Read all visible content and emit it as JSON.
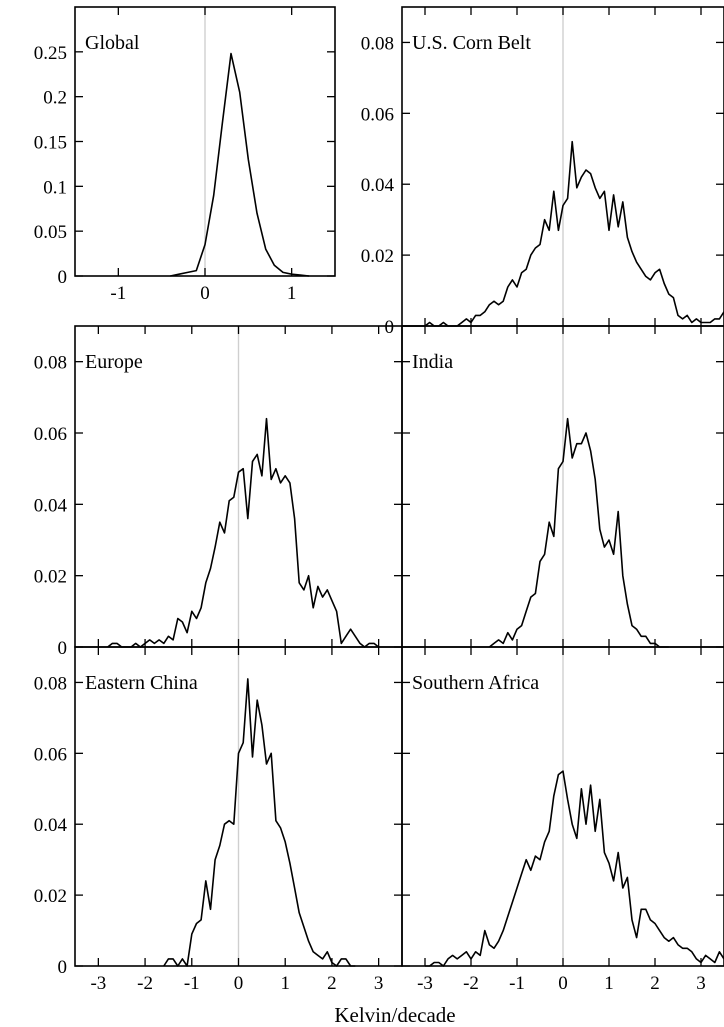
{
  "figure": {
    "xlabel": "Kelvin/decade"
  },
  "chart_data": [
    {
      "type": "line",
      "title": "Global",
      "xlim": [
        -1.5,
        1.5
      ],
      "ylim": [
        0,
        0.3
      ],
      "xticks": [
        -1,
        0,
        1
      ],
      "yticks": [
        0,
        0.05,
        0.1,
        0.15,
        0.2,
        0.25
      ],
      "ytick_labels": [
        "0",
        "0.05",
        "0.1",
        "0.15",
        "0.2",
        "0.25"
      ],
      "zero_line": true,
      "series": [
        {
          "x": [
            -0.4,
            -0.3,
            -0.2,
            -0.1,
            0.0,
            0.1,
            0.2,
            0.3,
            0.4,
            0.5,
            0.6,
            0.7,
            0.8,
            0.9,
            1.0,
            1.1,
            1.2
          ],
          "y": [
            0.0,
            0.002,
            0.004,
            0.006,
            0.035,
            0.09,
            0.17,
            0.248,
            0.205,
            0.13,
            0.07,
            0.03,
            0.012,
            0.004,
            0.002,
            0.001,
            0.0
          ]
        }
      ]
    },
    {
      "type": "line",
      "title": "U.S. Corn Belt",
      "xlim": [
        -3.5,
        3.5
      ],
      "ylim": [
        0,
        0.09
      ],
      "xticks": [
        -3,
        -2,
        -1,
        0,
        1,
        2,
        3
      ],
      "yticks": [
        0,
        0.02,
        0.04,
        0.06,
        0.08
      ],
      "ytick_labels": [
        "0",
        "0.02",
        "0.04",
        "0.06",
        "0.08"
      ],
      "zero_line": true,
      "series": [
        {
          "x": [
            -3.5,
            -3.4,
            -3.3,
            -3.2,
            -3.1,
            -3.0,
            -2.9,
            -2.8,
            -2.7,
            -2.6,
            -2.5,
            -2.4,
            -2.3,
            -2.2,
            -2.1,
            -2.0,
            -1.9,
            -1.8,
            -1.7,
            -1.6,
            -1.5,
            -1.4,
            -1.3,
            -1.2,
            -1.1,
            -1.0,
            -0.9,
            -0.8,
            -0.7,
            -0.6,
            -0.5,
            -0.4,
            -0.3,
            -0.2,
            -0.1,
            0.0,
            0.1,
            0.2,
            0.3,
            0.4,
            0.5,
            0.6,
            0.7,
            0.8,
            0.9,
            1.0,
            1.1,
            1.2,
            1.3,
            1.4,
            1.5,
            1.6,
            1.7,
            1.8,
            1.9,
            2.0,
            2.1,
            2.2,
            2.3,
            2.4,
            2.5,
            2.6,
            2.7,
            2.8,
            2.9,
            3.0,
            3.1,
            3.2,
            3.3,
            3.4,
            3.5
          ],
          "y": [
            0.0,
            0.0,
            0.0,
            0.0,
            0.0,
            0.0,
            0.001,
            0.0,
            0.0,
            0.001,
            0.0,
            0.0,
            0.0,
            0.001,
            0.002,
            0.001,
            0.003,
            0.003,
            0.004,
            0.006,
            0.007,
            0.006,
            0.007,
            0.011,
            0.013,
            0.011,
            0.015,
            0.016,
            0.02,
            0.022,
            0.023,
            0.03,
            0.027,
            0.038,
            0.027,
            0.034,
            0.036,
            0.052,
            0.039,
            0.042,
            0.044,
            0.043,
            0.039,
            0.036,
            0.038,
            0.027,
            0.037,
            0.028,
            0.035,
            0.025,
            0.021,
            0.018,
            0.016,
            0.014,
            0.013,
            0.015,
            0.016,
            0.012,
            0.009,
            0.008,
            0.003,
            0.002,
            0.003,
            0.001,
            0.002,
            0.001,
            0.001,
            0.001,
            0.002,
            0.002,
            0.004
          ]
        }
      ]
    },
    {
      "type": "line",
      "title": "Europe",
      "xlim": [
        -3.5,
        3.5
      ],
      "ylim": [
        0,
        0.09
      ],
      "xticks": [
        -3,
        -2,
        -1,
        0,
        1,
        2,
        3
      ],
      "yticks": [
        0,
        0.02,
        0.04,
        0.06,
        0.08
      ],
      "ytick_labels": [
        "0",
        "0.02",
        "0.04",
        "0.06",
        "0.08"
      ],
      "zero_line": true,
      "series": [
        {
          "x": [
            -2.8,
            -2.7,
            -2.6,
            -2.5,
            -2.4,
            -2.3,
            -2.2,
            -2.1,
            -2.0,
            -1.9,
            -1.8,
            -1.7,
            -1.6,
            -1.5,
            -1.4,
            -1.3,
            -1.2,
            -1.1,
            -1.0,
            -0.9,
            -0.8,
            -0.7,
            -0.6,
            -0.5,
            -0.4,
            -0.3,
            -0.2,
            -0.1,
            0.0,
            0.1,
            0.2,
            0.3,
            0.4,
            0.5,
            0.6,
            0.7,
            0.8,
            0.9,
            1.0,
            1.1,
            1.2,
            1.3,
            1.4,
            1.5,
            1.6,
            1.7,
            1.8,
            1.9,
            2.0,
            2.1,
            2.2,
            2.3,
            2.4,
            2.5,
            2.6,
            2.7,
            2.8,
            2.9,
            3.0
          ],
          "y": [
            0.0,
            0.001,
            0.001,
            0.0,
            0.0,
            0.0,
            0.001,
            0.0,
            0.001,
            0.002,
            0.001,
            0.002,
            0.001,
            0.003,
            0.002,
            0.008,
            0.007,
            0.004,
            0.01,
            0.008,
            0.011,
            0.018,
            0.022,
            0.028,
            0.035,
            0.032,
            0.041,
            0.042,
            0.049,
            0.05,
            0.036,
            0.052,
            0.054,
            0.048,
            0.064,
            0.047,
            0.05,
            0.046,
            0.048,
            0.046,
            0.036,
            0.018,
            0.016,
            0.02,
            0.011,
            0.017,
            0.014,
            0.016,
            0.013,
            0.01,
            0.001,
            0.003,
            0.005,
            0.003,
            0.001,
            0.0,
            0.001,
            0.001,
            0.0
          ]
        }
      ]
    },
    {
      "type": "line",
      "title": "India",
      "xlim": [
        -3.5,
        3.5
      ],
      "ylim": [
        0,
        0.09
      ],
      "xticks": [
        -3,
        -2,
        -1,
        0,
        1,
        2,
        3
      ],
      "yticks": [
        0,
        0.02,
        0.04,
        0.06,
        0.08
      ],
      "ytick_labels": [
        "0",
        "0.02",
        "0.04",
        "0.06",
        "0.08"
      ],
      "zero_line": true,
      "series": [
        {
          "x": [
            -1.6,
            -1.5,
            -1.4,
            -1.3,
            -1.2,
            -1.1,
            -1.0,
            -0.9,
            -0.8,
            -0.7,
            -0.6,
            -0.5,
            -0.4,
            -0.3,
            -0.2,
            -0.1,
            0.0,
            0.1,
            0.2,
            0.3,
            0.4,
            0.5,
            0.6,
            0.7,
            0.8,
            0.9,
            1.0,
            1.1,
            1.2,
            1.3,
            1.4,
            1.5,
            1.6,
            1.7,
            1.8,
            1.9,
            2.0,
            2.1,
            2.2,
            2.3
          ],
          "y": [
            0.0,
            0.001,
            0.002,
            0.001,
            0.004,
            0.002,
            0.005,
            0.006,
            0.01,
            0.014,
            0.015,
            0.024,
            0.026,
            0.035,
            0.031,
            0.05,
            0.052,
            0.064,
            0.053,
            0.057,
            0.057,
            0.06,
            0.055,
            0.047,
            0.033,
            0.028,
            0.03,
            0.026,
            0.038,
            0.02,
            0.012,
            0.006,
            0.005,
            0.003,
            0.003,
            0.001,
            0.001,
            0.0,
            0.0,
            0.0
          ]
        }
      ]
    },
    {
      "type": "line",
      "title": "Eastern China",
      "xlim": [
        -3.5,
        3.5
      ],
      "ylim": [
        0,
        0.09
      ],
      "xticks": [
        -3,
        -2,
        -1,
        0,
        1,
        2,
        3
      ],
      "yticks": [
        0,
        0.02,
        0.04,
        0.06,
        0.08
      ],
      "ytick_labels": [
        "0",
        "0.02",
        "0.04",
        "0.06",
        "0.08"
      ],
      "zero_line": true,
      "series": [
        {
          "x": [
            -1.6,
            -1.5,
            -1.4,
            -1.3,
            -1.2,
            -1.1,
            -1.0,
            -0.9,
            -0.8,
            -0.7,
            -0.6,
            -0.5,
            -0.4,
            -0.3,
            -0.2,
            -0.1,
            0.0,
            0.1,
            0.2,
            0.3,
            0.4,
            0.5,
            0.6,
            0.7,
            0.8,
            0.9,
            1.0,
            1.1,
            1.2,
            1.3,
            1.4,
            1.5,
            1.6,
            1.7,
            1.8,
            1.9,
            2.0,
            2.1,
            2.2,
            2.3,
            2.4,
            2.5
          ],
          "y": [
            0.0,
            0.002,
            0.002,
            0.0,
            0.002,
            0.0,
            0.009,
            0.012,
            0.013,
            0.024,
            0.016,
            0.03,
            0.034,
            0.04,
            0.041,
            0.04,
            0.06,
            0.063,
            0.081,
            0.059,
            0.075,
            0.068,
            0.057,
            0.06,
            0.041,
            0.039,
            0.035,
            0.029,
            0.022,
            0.015,
            0.011,
            0.007,
            0.004,
            0.003,
            0.002,
            0.004,
            0.001,
            0.0,
            0.002,
            0.002,
            0.0,
            0.0
          ]
        }
      ]
    },
    {
      "type": "line",
      "title": "Southern Africa",
      "xlim": [
        -3.5,
        3.5
      ],
      "ylim": [
        0,
        0.09
      ],
      "xticks": [
        -3,
        -2,
        -1,
        0,
        1,
        2,
        3
      ],
      "yticks": [
        0,
        0.02,
        0.04,
        0.06,
        0.08
      ],
      "ytick_labels": [
        "0",
        "0.02",
        "0.04",
        "0.06",
        "0.08"
      ],
      "zero_line": true,
      "series": [
        {
          "x": [
            -3.0,
            -2.9,
            -2.8,
            -2.7,
            -2.6,
            -2.5,
            -2.4,
            -2.3,
            -2.2,
            -2.1,
            -2.0,
            -1.9,
            -1.8,
            -1.7,
            -1.6,
            -1.5,
            -1.4,
            -1.3,
            -1.2,
            -1.1,
            -1.0,
            -0.9,
            -0.8,
            -0.7,
            -0.6,
            -0.5,
            -0.4,
            -0.3,
            -0.2,
            -0.1,
            0.0,
            0.1,
            0.2,
            0.3,
            0.4,
            0.5,
            0.6,
            0.7,
            0.8,
            0.9,
            1.0,
            1.1,
            1.2,
            1.3,
            1.4,
            1.5,
            1.6,
            1.7,
            1.8,
            1.9,
            2.0,
            2.1,
            2.2,
            2.3,
            2.4,
            2.5,
            2.6,
            2.7,
            2.8,
            2.9,
            3.0,
            3.1,
            3.2,
            3.3,
            3.4,
            3.5
          ],
          "y": [
            0.0,
            0.0,
            0.001,
            0.001,
            0.0,
            0.002,
            0.003,
            0.002,
            0.003,
            0.004,
            0.002,
            0.004,
            0.003,
            0.01,
            0.006,
            0.005,
            0.007,
            0.01,
            0.014,
            0.018,
            0.022,
            0.026,
            0.03,
            0.027,
            0.031,
            0.03,
            0.035,
            0.038,
            0.048,
            0.054,
            0.055,
            0.047,
            0.04,
            0.036,
            0.05,
            0.04,
            0.051,
            0.038,
            0.047,
            0.032,
            0.029,
            0.024,
            0.032,
            0.022,
            0.025,
            0.013,
            0.008,
            0.016,
            0.016,
            0.013,
            0.012,
            0.01,
            0.008,
            0.007,
            0.008,
            0.006,
            0.005,
            0.005,
            0.004,
            0.002,
            0.001,
            0.003,
            0.002,
            0.001,
            0.004,
            0.002
          ]
        }
      ]
    }
  ]
}
